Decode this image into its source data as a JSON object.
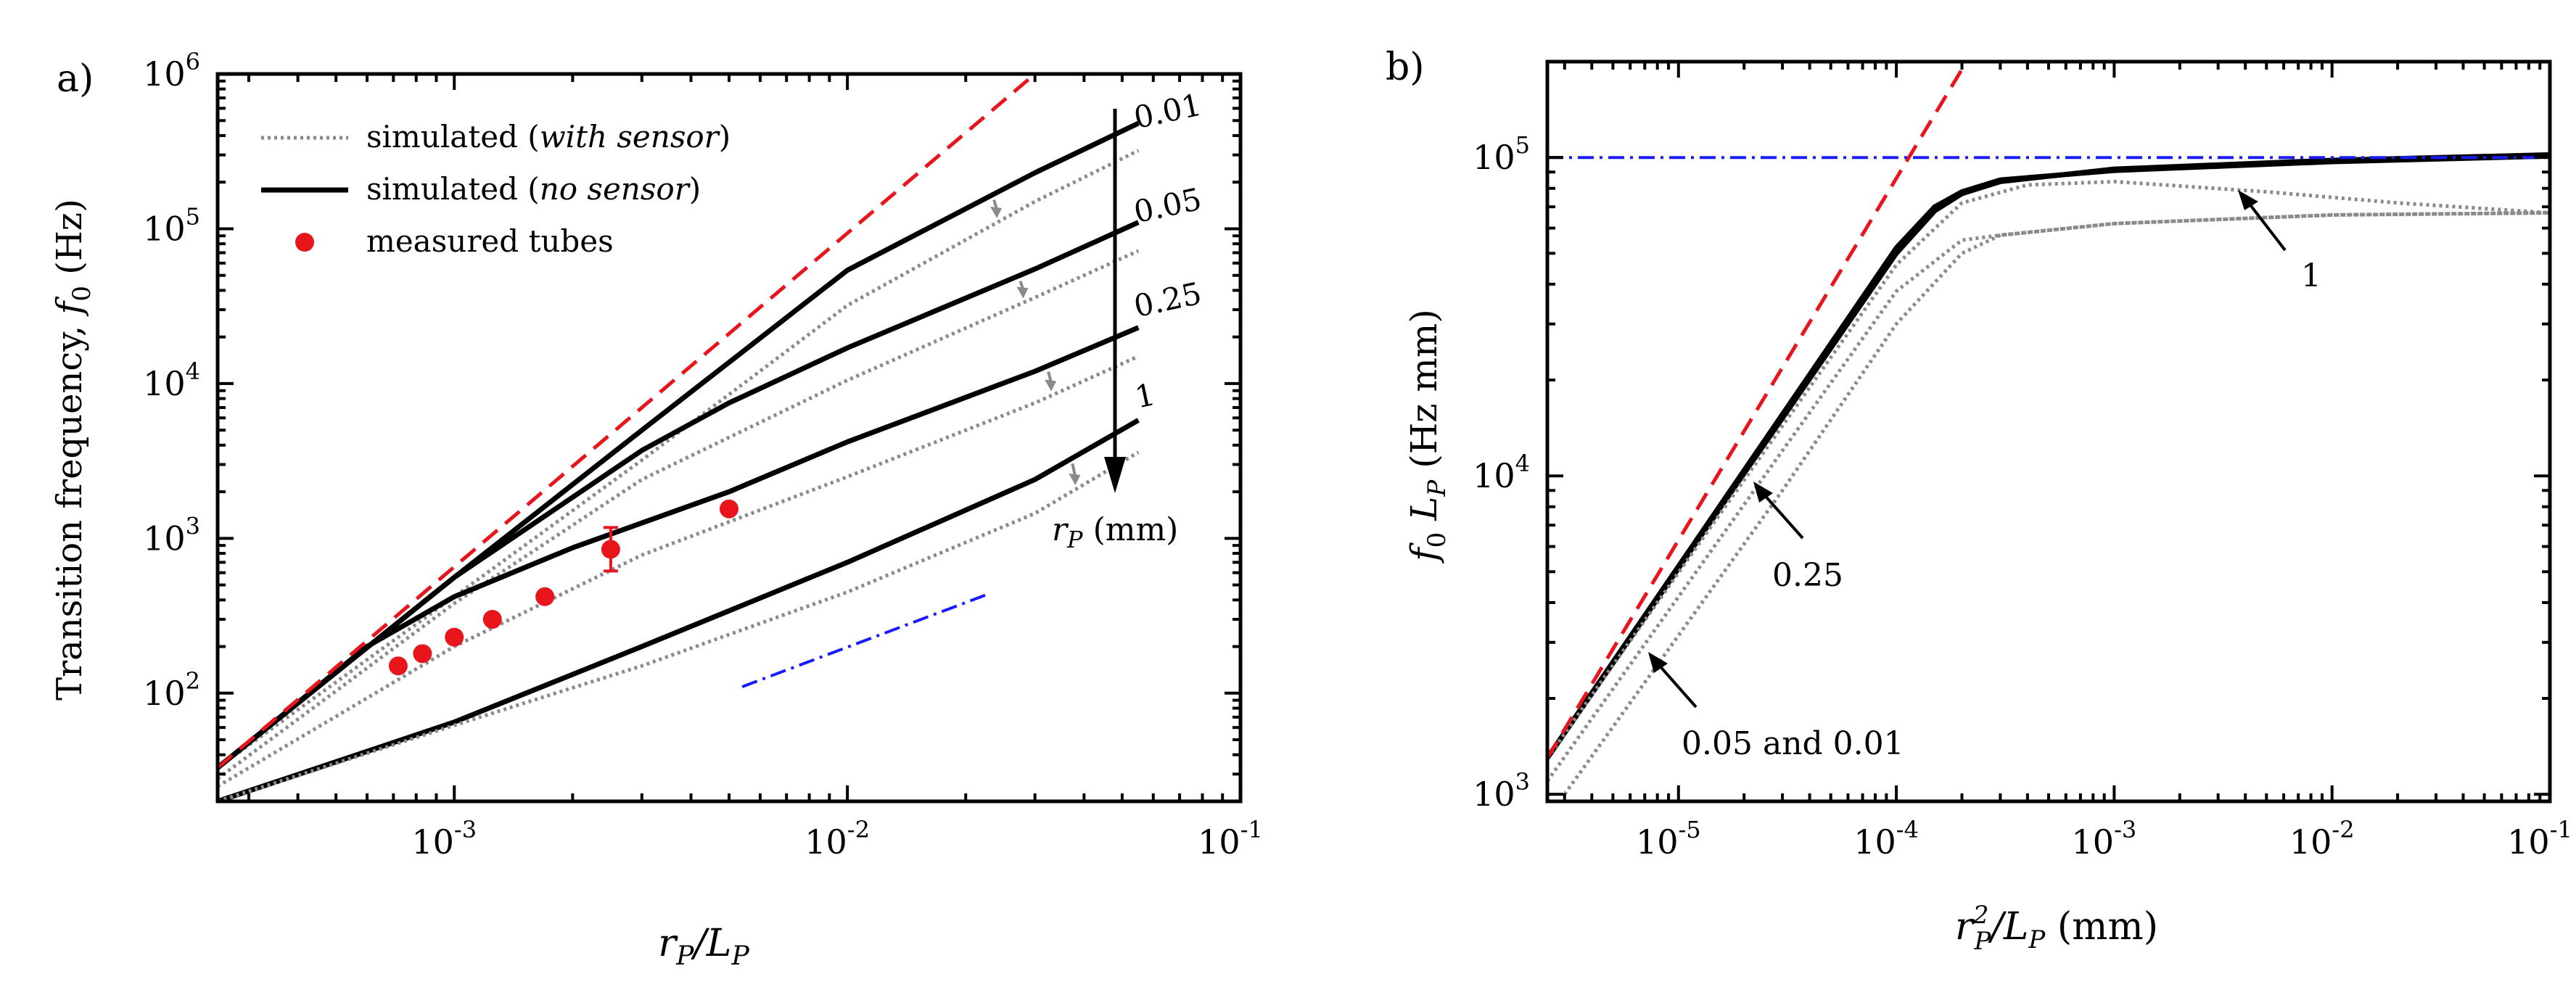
{
  "chart_data": [
    {
      "panel_label": "a)",
      "type": "line",
      "xscale": "log",
      "yscale": "log",
      "xlabel": {
        "base": "r",
        "sub": "P",
        "tail": "/L",
        "sub2": "P"
      },
      "ylabel": {
        "main": "Transition frequency, ",
        "italic": "f",
        "sub": "0",
        "unit": " (Hz)"
      },
      "xlim": [
        0.00025,
        0.1
      ],
      "ylim": [
        20,
        1000000
      ],
      "xticks": [
        {
          "value": 0.001,
          "base": "10",
          "exp": "-3"
        },
        {
          "value": 0.01,
          "base": "10",
          "exp": "-2"
        },
        {
          "value": 0.1,
          "base": "10",
          "exp": "-1"
        }
      ],
      "yticks": [
        {
          "value": 100,
          "base": "10",
          "exp": "2"
        },
        {
          "value": 1000,
          "base": "10",
          "exp": "3"
        },
        {
          "value": 10000,
          "base": "10",
          "exp": "4"
        },
        {
          "value": 100000,
          "base": "10",
          "exp": "5"
        },
        {
          "value": 1000000,
          "base": "10",
          "exp": "6"
        }
      ],
      "legend": {
        "position": "top-left",
        "entries": [
          {
            "style": "dotted-gray",
            "prefix": "simulated (",
            "italic": "with sensor",
            "suffix": ")"
          },
          {
            "style": "solid-black",
            "prefix": "simulated (",
            "italic": "no sensor",
            "suffix": ")"
          },
          {
            "style": "red-dot",
            "prefix": "measured tubes",
            "italic": "",
            "suffix": ""
          }
        ]
      },
      "rp_labels": [
        "0.01",
        "0.05",
        "0.25",
        "1"
      ],
      "rp_axis_label": {
        "base": "r",
        "sub": "P",
        "unit": " (mm)"
      },
      "series": [
        {
          "rp": 0.01,
          "kind": "no_sensor",
          "x": [
            0.00025,
            0.001,
            0.003,
            0.01,
            0.03,
            0.055
          ],
          "y": [
            33,
            560,
            5000,
            54000,
            230000,
            480000
          ]
        },
        {
          "rp": 0.01,
          "kind": "with_sensor",
          "x": [
            0.00025,
            0.001,
            0.003,
            0.01,
            0.03,
            0.055
          ],
          "y": [
            33,
            420,
            3200,
            32000,
            150000,
            320000
          ]
        },
        {
          "rp": 0.05,
          "kind": "no_sensor",
          "x": [
            0.00025,
            0.001,
            0.003,
            0.005,
            0.01,
            0.03,
            0.055
          ],
          "y": [
            33,
            560,
            3700,
            7500,
            17000,
            55000,
            110000
          ]
        },
        {
          "rp": 0.05,
          "kind": "with_sensor",
          "x": [
            0.00025,
            0.001,
            0.003,
            0.01,
            0.03,
            0.055
          ],
          "y": [
            28,
            380,
            2400,
            10500,
            36000,
            72000
          ]
        },
        {
          "rp": 0.25,
          "kind": "no_sensor",
          "x": [
            0.00025,
            0.0006,
            0.001,
            0.002,
            0.005,
            0.01,
            0.03,
            0.055
          ],
          "y": [
            33,
            200,
            420,
            870,
            2000,
            4200,
            12000,
            23000
          ]
        },
        {
          "rp": 0.25,
          "kind": "with_sensor",
          "x": [
            0.00025,
            0.001,
            0.003,
            0.01,
            0.03,
            0.055
          ],
          "y": [
            25,
            200,
            780,
            2500,
            7500,
            15000
          ]
        },
        {
          "rp": 1,
          "kind": "no_sensor",
          "x": [
            0.00025,
            0.0005,
            0.001,
            0.003,
            0.01,
            0.03,
            0.055
          ],
          "y": [
            20,
            36,
            65,
            200,
            700,
            2400,
            5800
          ]
        },
        {
          "rp": 1,
          "kind": "with_sensor",
          "x": [
            0.00025,
            0.001,
            0.003,
            0.01,
            0.03,
            0.055
          ],
          "y": [
            20,
            62,
            150,
            450,
            1450,
            3600
          ]
        }
      ],
      "asymptote_red": {
        "x": [
          0.00025,
          0.03
        ],
        "y": [
          33,
          1000000
        ]
      },
      "reference_blue": {
        "x": [
          0.0054,
          0.023
        ],
        "y": [
          110,
          440
        ]
      },
      "measured": {
        "x": [
          0.00072,
          0.00083,
          0.001,
          0.00125,
          0.0017,
          0.0025,
          0.005
        ],
        "y": [
          150,
          180,
          230,
          300,
          420,
          850,
          1550
        ]
      },
      "sensor_arrow_x": [
        0.024,
        0.028,
        0.033,
        0.038
      ]
    },
    {
      "panel_label": "b)",
      "type": "line",
      "xscale": "log",
      "yscale": "log",
      "xlabel": {
        "base": "r",
        "sup": "2",
        "sub": "P",
        "tail": "/L",
        "sub2": "P",
        "unit": " (mm)"
      },
      "ylabel": {
        "italic": "f",
        "sub": "0",
        "mid": " L",
        "sub2": "P",
        "unit": " (Hz mm)"
      },
      "xlim": [
        2.5e-06,
        0.1
      ],
      "ylim": [
        950,
        200000
      ],
      "xticks": [
        {
          "value": 1e-05,
          "base": "10",
          "exp": "-5"
        },
        {
          "value": 0.0001,
          "base": "10",
          "exp": "-4"
        },
        {
          "value": 0.001,
          "base": "10",
          "exp": "-3"
        },
        {
          "value": 0.01,
          "base": "10",
          "exp": "-2"
        },
        {
          "value": 0.1,
          "base": "10",
          "exp": "-1"
        }
      ],
      "yticks": [
        {
          "value": 1000,
          "base": "10",
          "exp": "3"
        },
        {
          "value": 10000,
          "base": "10",
          "exp": "4"
        },
        {
          "value": 100000,
          "base": "10",
          "exp": "5"
        }
      ],
      "annotations": [
        "1",
        "0.25",
        "0.05 and 0.01"
      ],
      "asymptote_red": {
        "x": [
          2.5e-06,
          0.00021
        ],
        "y": [
          1300,
          200000
        ]
      },
      "reference_blue": {
        "x": [
          2.5e-06,
          0.1
        ],
        "y": [
          100000,
          100000
        ]
      },
      "series": [
        {
          "kind": "no_sensor",
          "x": [
            2.5e-06,
            0.0001,
            0.00015,
            0.0002,
            0.0003,
            0.001,
            0.01,
            0.1
          ],
          "y": [
            1300,
            52000,
            70000,
            78000,
            85000,
            91000,
            97000,
            101000
          ]
        },
        {
          "kind": "no_sensor",
          "x": [
            2.5e-06,
            0.0001,
            0.00015,
            0.0002,
            0.0003,
            0.001,
            0.01,
            0.1
          ],
          "y": [
            1300,
            50000,
            68000,
            77000,
            84000,
            92000,
            98000,
            102000
          ]
        },
        {
          "kind": "with_sensor",
          "label": "1",
          "x": [
            2.5e-06,
            0.0001,
            0.0002,
            0.0004,
            0.001,
            0.005,
            0.02,
            0.1
          ],
          "y": [
            1300,
            46000,
            72000,
            82000,
            84000,
            78000,
            72000,
            67000
          ]
        },
        {
          "kind": "with_sensor",
          "label": "0.25",
          "x": [
            2.5e-06,
            3e-05,
            0.0001,
            0.0002,
            0.0003,
            0.001,
            0.01,
            0.1
          ],
          "y": [
            1100,
            12000,
            38000,
            55000,
            57000,
            62000,
            66000,
            67000
          ]
        },
        {
          "kind": "with_sensor",
          "label": "0.05 and 0.01",
          "x": [
            3e-06,
            3e-05,
            0.0001,
            0.0002,
            0.0003,
            0.001,
            0.01,
            0.1
          ],
          "y": [
            1000,
            9000,
            30000,
            50000,
            57000,
            62000,
            66000,
            67000
          ]
        }
      ]
    }
  ]
}
